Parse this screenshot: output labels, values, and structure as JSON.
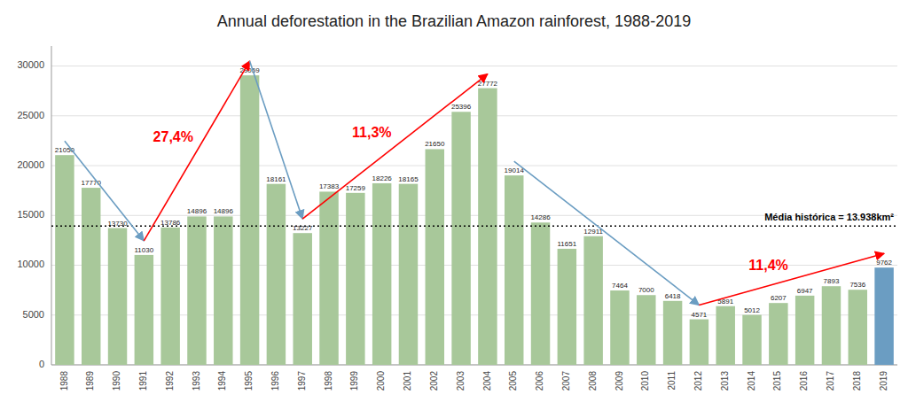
{
  "chart_data": {
    "type": "bar",
    "title": "Annual deforestation in the Brazilian Amazon rainforest, 1988-2019",
    "categories": [
      1988,
      1989,
      1990,
      1991,
      1992,
      1993,
      1994,
      1995,
      1996,
      1997,
      1998,
      1999,
      2000,
      2001,
      2002,
      2003,
      2004,
      2005,
      2006,
      2007,
      2008,
      2009,
      2010,
      2011,
      2012,
      2013,
      2014,
      2015,
      2016,
      2017,
      2018,
      2019
    ],
    "values": [
      21050,
      17770,
      13730,
      11030,
      13786,
      14896,
      14896,
      29059,
      18161,
      13227,
      17383,
      17259,
      18226,
      18165,
      21650,
      25396,
      27772,
      19014,
      14286,
      11651,
      12911,
      7464,
      7000,
      6418,
      4571,
      5891,
      5012,
      6207,
      6947,
      7893,
      7536,
      9762
    ],
    "colors": [
      "#a8c89a",
      "#a8c89a",
      "#a8c89a",
      "#a8c89a",
      "#a8c89a",
      "#a8c89a",
      "#a8c89a",
      "#a8c89a",
      "#a8c89a",
      "#a8c89a",
      "#a8c89a",
      "#a8c89a",
      "#a8c89a",
      "#a8c89a",
      "#a8c89a",
      "#a8c89a",
      "#a8c89a",
      "#a8c89a",
      "#a8c89a",
      "#a8c89a",
      "#a8c89a",
      "#a8c89a",
      "#a8c89a",
      "#a8c89a",
      "#a8c89a",
      "#a8c89a",
      "#a8c89a",
      "#a8c89a",
      "#a8c89a",
      "#a8c89a",
      "#a8c89a",
      "#6b9dc2"
    ],
    "ylim": [
      0,
      32000
    ],
    "yticks": [
      0,
      5000,
      10000,
      15000,
      20000,
      25000,
      30000
    ],
    "grid": true,
    "data_labels": true,
    "reference_lines": [
      {
        "value": 13938,
        "label": "Média histórica = 13.938km²"
      }
    ],
    "annotations": [
      {
        "text": "27,4%",
        "color": "red",
        "arrows": [
          {
            "from": 0,
            "to": 3,
            "color": "#6b9dc2"
          },
          {
            "from": 3,
            "to": 7,
            "color": "red"
          }
        ]
      },
      {
        "text": "11,3%",
        "color": "red",
        "arrows": [
          {
            "from": 7,
            "to": 9,
            "color": "#6b9dc2"
          },
          {
            "from": 9,
            "to": 16,
            "color": "red"
          }
        ]
      },
      {
        "text": "11,4%",
        "color": "red",
        "arrows": [
          {
            "from": 17,
            "to": 24,
            "color": "#6b9dc2"
          },
          {
            "from": 24,
            "to": 31,
            "color": "red"
          }
        ]
      }
    ]
  }
}
